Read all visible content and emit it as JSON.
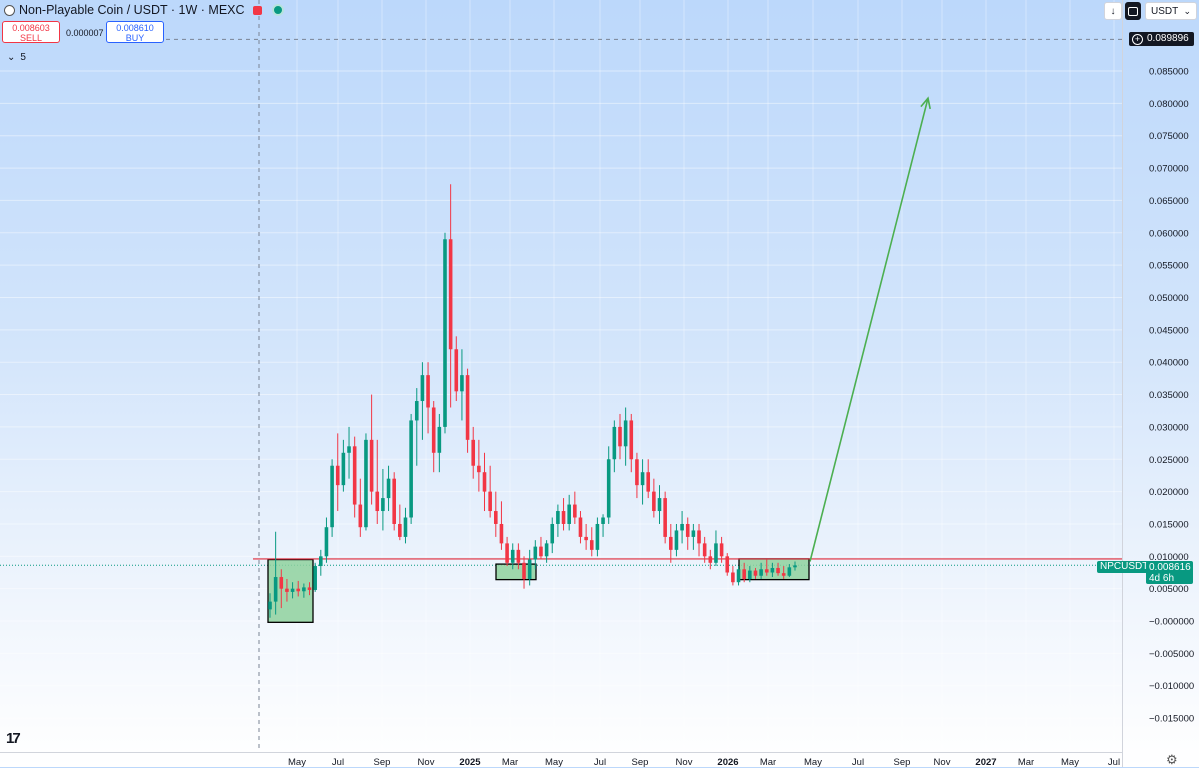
{
  "header": {
    "title": "Non-Playable Coin / USDT · 1W · MEXC",
    "sell_price": "0.008603",
    "sell_label": "SELL",
    "buy_price": "0.008610",
    "buy_label": "BUY",
    "spread": "0.000007",
    "indicators_count": "5",
    "currency": "USDT"
  },
  "price_axis": {
    "crosshair_price": "0.089896",
    "current_symbol": "NPCUSDT",
    "current_price": "0.008616",
    "countdown": "4d 6h",
    "ticks": [
      "0.085000",
      "0.080000",
      "0.075000",
      "0.070000",
      "0.065000",
      "0.060000",
      "0.055000",
      "0.050000",
      "0.045000",
      "0.040000",
      "0.035000",
      "0.030000",
      "0.025000",
      "0.020000",
      "0.015000",
      "0.010000",
      "0.005000",
      "−0.000000",
      "−0.005000",
      "−0.010000",
      "−0.015000"
    ]
  },
  "time_axis": {
    "labels": [
      "May",
      "Jul",
      "Sep",
      "Nov",
      "2025",
      "Mar",
      "May",
      "Jul",
      "Sep",
      "Nov",
      "2026",
      "Mar",
      "May",
      "Jul",
      "Sep",
      "Nov",
      "2027",
      "Mar",
      "May",
      "Jul"
    ],
    "bold_labels": [
      "2025",
      "2026",
      "2027"
    ]
  },
  "colors": {
    "up": "#089981",
    "down": "#f23645",
    "resistance": "#e02a3a",
    "projection": "#4caf50",
    "box_fill": "#8fd19e",
    "box_stroke": "#000000"
  },
  "icons": [
    "tradingview-logo",
    "settings-gear-icon",
    "plus-circle-icon",
    "download-icon",
    "chevron-down-icon"
  ],
  "chart_data": {
    "type": "candlestick",
    "symbol": "NPCUSDT",
    "interval": "1W",
    "exchange": "MEXC",
    "ylim": [
      -0.0195,
      0.092
    ],
    "x_axis": [
      "May",
      "Jul",
      "Sep",
      "Nov",
      "2025",
      "Mar",
      "May",
      "Jul",
      "Sep",
      "Nov",
      "2026",
      "Mar",
      "May",
      "Jul",
      "Sep",
      "Nov",
      "2027",
      "Mar",
      "May",
      "Jul"
    ],
    "candles": [
      [
        0.0018,
        0.0043,
        0.0005,
        0.003
      ],
      [
        0.003,
        0.0138,
        0.001,
        0.0068
      ],
      [
        0.0068,
        0.008,
        0.002,
        0.005
      ],
      [
        0.005,
        0.0065,
        0.003,
        0.0045
      ],
      [
        0.0045,
        0.006,
        0.0035,
        0.005
      ],
      [
        0.005,
        0.0062,
        0.0038,
        0.0046
      ],
      [
        0.0046,
        0.0058,
        0.0036,
        0.0052
      ],
      [
        0.0052,
        0.006,
        0.004,
        0.0048
      ],
      [
        0.0048,
        0.009,
        0.0045,
        0.0085
      ],
      [
        0.0085,
        0.011,
        0.007,
        0.01
      ],
      [
        0.01,
        0.016,
        0.009,
        0.0145
      ],
      [
        0.0145,
        0.025,
        0.013,
        0.024
      ],
      [
        0.024,
        0.029,
        0.017,
        0.021
      ],
      [
        0.021,
        0.028,
        0.02,
        0.026
      ],
      [
        0.026,
        0.03,
        0.022,
        0.027
      ],
      [
        0.027,
        0.0285,
        0.016,
        0.018
      ],
      [
        0.018,
        0.022,
        0.013,
        0.0145
      ],
      [
        0.0145,
        0.029,
        0.014,
        0.028
      ],
      [
        0.028,
        0.035,
        0.018,
        0.02
      ],
      [
        0.02,
        0.028,
        0.015,
        0.017
      ],
      [
        0.017,
        0.0235,
        0.014,
        0.019
      ],
      [
        0.019,
        0.024,
        0.017,
        0.022
      ],
      [
        0.022,
        0.023,
        0.014,
        0.015
      ],
      [
        0.015,
        0.018,
        0.0125,
        0.013
      ],
      [
        0.013,
        0.0175,
        0.012,
        0.016
      ],
      [
        0.016,
        0.032,
        0.015,
        0.031
      ],
      [
        0.031,
        0.036,
        0.024,
        0.034
      ],
      [
        0.034,
        0.04,
        0.028,
        0.038
      ],
      [
        0.038,
        0.04,
        0.029,
        0.033
      ],
      [
        0.033,
        0.034,
        0.023,
        0.026
      ],
      [
        0.026,
        0.032,
        0.023,
        0.03
      ],
      [
        0.03,
        0.06,
        0.029,
        0.059
      ],
      [
        0.059,
        0.0675,
        0.033,
        0.042
      ],
      [
        0.042,
        0.044,
        0.034,
        0.0355
      ],
      [
        0.0355,
        0.042,
        0.031,
        0.038
      ],
      [
        0.038,
        0.039,
        0.026,
        0.028
      ],
      [
        0.028,
        0.03,
        0.022,
        0.024
      ],
      [
        0.024,
        0.028,
        0.02,
        0.023
      ],
      [
        0.023,
        0.026,
        0.017,
        0.02
      ],
      [
        0.02,
        0.024,
        0.016,
        0.017
      ],
      [
        0.017,
        0.02,
        0.013,
        0.015
      ],
      [
        0.015,
        0.0185,
        0.011,
        0.012
      ],
      [
        0.012,
        0.013,
        0.0085,
        0.009
      ],
      [
        0.009,
        0.012,
        0.008,
        0.011
      ],
      [
        0.011,
        0.012,
        0.008,
        0.009
      ],
      [
        0.009,
        0.01,
        0.005,
        0.0065
      ],
      [
        0.0065,
        0.011,
        0.0055,
        0.0095
      ],
      [
        0.0095,
        0.0125,
        0.008,
        0.0115
      ],
      [
        0.0115,
        0.013,
        0.0095,
        0.01
      ],
      [
        0.01,
        0.0125,
        0.009,
        0.012
      ],
      [
        0.012,
        0.016,
        0.0105,
        0.015
      ],
      [
        0.015,
        0.018,
        0.013,
        0.017
      ],
      [
        0.017,
        0.019,
        0.014,
        0.015
      ],
      [
        0.015,
        0.0195,
        0.014,
        0.018
      ],
      [
        0.018,
        0.02,
        0.015,
        0.016
      ],
      [
        0.016,
        0.017,
        0.012,
        0.013
      ],
      [
        0.013,
        0.015,
        0.011,
        0.0125
      ],
      [
        0.0125,
        0.0145,
        0.01,
        0.011
      ],
      [
        0.011,
        0.016,
        0.01,
        0.015
      ],
      [
        0.015,
        0.0165,
        0.013,
        0.016
      ],
      [
        0.016,
        0.027,
        0.015,
        0.025
      ],
      [
        0.025,
        0.031,
        0.023,
        0.03
      ],
      [
        0.03,
        0.032,
        0.025,
        0.027
      ],
      [
        0.027,
        0.033,
        0.024,
        0.031
      ],
      [
        0.031,
        0.032,
        0.023,
        0.025
      ],
      [
        0.025,
        0.026,
        0.019,
        0.021
      ],
      [
        0.021,
        0.025,
        0.018,
        0.023
      ],
      [
        0.023,
        0.025,
        0.019,
        0.02
      ],
      [
        0.02,
        0.022,
        0.016,
        0.017
      ],
      [
        0.017,
        0.021,
        0.015,
        0.019
      ],
      [
        0.019,
        0.02,
        0.012,
        0.013
      ],
      [
        0.013,
        0.015,
        0.009,
        0.011
      ],
      [
        0.011,
        0.015,
        0.01,
        0.014
      ],
      [
        0.014,
        0.017,
        0.012,
        0.015
      ],
      [
        0.015,
        0.016,
        0.011,
        0.013
      ],
      [
        0.013,
        0.015,
        0.011,
        0.014
      ],
      [
        0.014,
        0.015,
        0.01,
        0.012
      ],
      [
        0.012,
        0.013,
        0.009,
        0.01
      ],
      [
        0.01,
        0.011,
        0.008,
        0.009
      ],
      [
        0.009,
        0.014,
        0.0085,
        0.012
      ],
      [
        0.012,
        0.013,
        0.009,
        0.01
      ],
      [
        0.01,
        0.0105,
        0.007,
        0.0075
      ],
      [
        0.0075,
        0.0085,
        0.0055,
        0.006
      ],
      [
        0.006,
        0.0085,
        0.0055,
        0.008
      ],
      [
        0.008,
        0.009,
        0.006,
        0.0065
      ],
      [
        0.0065,
        0.0085,
        0.006,
        0.0078
      ],
      [
        0.0078,
        0.0082,
        0.0065,
        0.007
      ],
      [
        0.007,
        0.009,
        0.0065,
        0.008
      ],
      [
        0.008,
        0.0095,
        0.007,
        0.0075
      ],
      [
        0.0075,
        0.009,
        0.0068,
        0.0082
      ],
      [
        0.0082,
        0.009,
        0.007,
        0.0074
      ],
      [
        0.0074,
        0.0085,
        0.0065,
        0.007
      ],
      [
        0.007,
        0.0088,
        0.0068,
        0.0083
      ],
      [
        0.0083,
        0.0092,
        0.0078,
        0.0086
      ]
    ],
    "annotations": {
      "resistance_price": 0.0096,
      "accumulation_zones": [
        [
          0.0095,
          -0.0002
        ],
        [
          0.0088,
          0.0064
        ],
        [
          0.0096,
          0.0064
        ]
      ],
      "projection_target": 0.0808
    }
  }
}
